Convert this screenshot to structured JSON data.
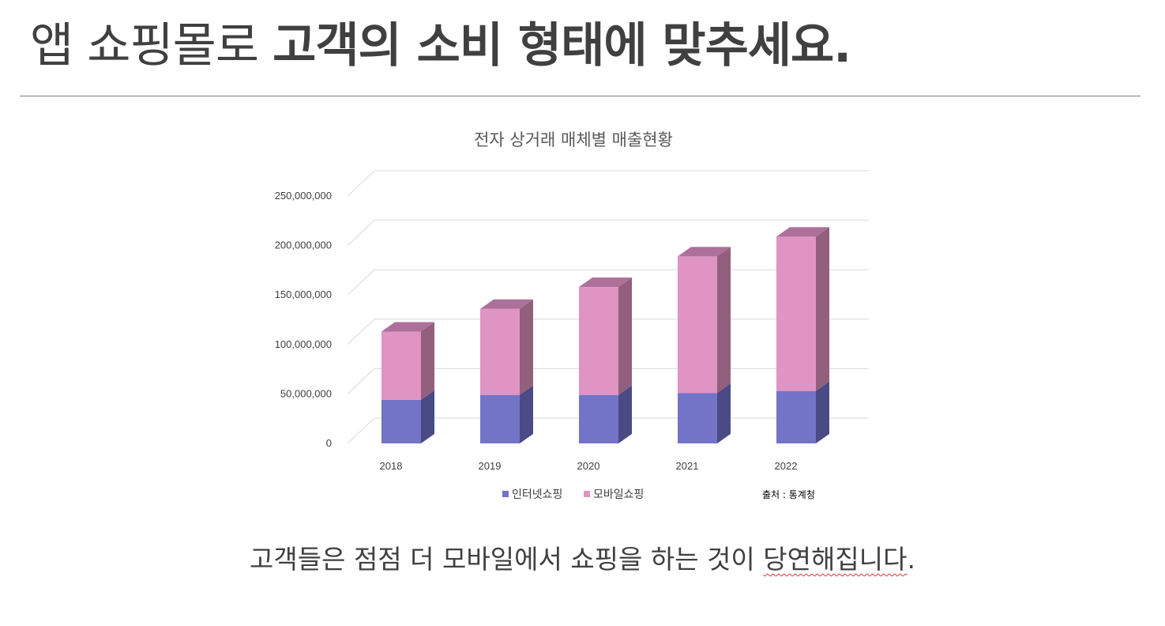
{
  "slide": {
    "title_light": "앱 쇼핑몰로 ",
    "title_bold": "고객의 소비 형태에 맞추세요.",
    "caption_main": "고객들은 점점 더 모바일에서 쇼핑을 하는 것이 ",
    "caption_flagged": "당연해집니다",
    "caption_end": "."
  },
  "chart_data": {
    "type": "bar",
    "stacked": true,
    "three_d": true,
    "title": "전자 상거래 매체별 매출현황",
    "categories": [
      "2018",
      "2019",
      "2020",
      "2021",
      "2022"
    ],
    "series": [
      {
        "name": "인터넷쇼핑",
        "values": [
          44000000,
          49000000,
          49000000,
          51000000,
          53000000
        ],
        "color": "#7373c7"
      },
      {
        "name": "모바일쇼핑",
        "values": [
          69000000,
          87000000,
          109000000,
          138000000,
          156000000
        ],
        "color": "#df94c3"
      }
    ],
    "ylim": [
      0,
      250000000
    ],
    "yticks": [
      "0",
      "50,000,000",
      "100,000,000",
      "150,000,000",
      "200,000,000",
      "250,000,000"
    ],
    "grid": true,
    "legend": "bottom",
    "source_note": "출처 : 통계청"
  },
  "colors": {
    "text": "#404040",
    "divider": "#808080",
    "gridline": "#d9d9d9",
    "internet_front": "#7373c7",
    "internet_side": "#4a4a85",
    "mobile_front": "#df94c3",
    "mobile_side": "#925f7d",
    "mobile_top": "#ad7199"
  }
}
